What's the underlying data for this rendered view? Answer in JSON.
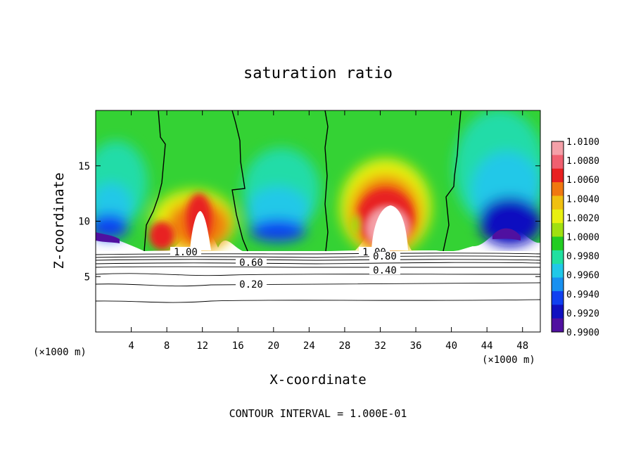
{
  "chart_data": {
    "type": "heatmap",
    "title": "saturation ratio",
    "xlabel": "X-coordinate",
    "ylabel": "Z-coordinate",
    "x_unit_left": "(×1000 m)",
    "x_unit_right": "(×1000 m)",
    "xlim": [
      0,
      50
    ],
    "ylim": [
      0,
      20
    ],
    "x_ticks": [
      4,
      8,
      12,
      16,
      20,
      24,
      28,
      32,
      36,
      40,
      44,
      48
    ],
    "y_ticks": [
      5,
      10,
      15
    ],
    "footer": "CONTOUR INTERVAL = 1.000E-01",
    "colorbar": {
      "levels": [
        "1.0100",
        "1.0080",
        "1.0060",
        "1.0040",
        "1.0020",
        "1.0000",
        "0.9980",
        "0.9960",
        "0.9940",
        "0.9920",
        "0.9900"
      ],
      "colors": [
        "#f4a0a8",
        "#f06070",
        "#e82020",
        "#f07810",
        "#f0c010",
        "#e8f010",
        "#a0e010",
        "#22cc22",
        "#20e0a0",
        "#20c8e8",
        "#1890f0",
        "#1040f0",
        "#1010c0",
        "#5010a0"
      ]
    },
    "contour_labels": [
      {
        "text": "1.00",
        "x": 8.5,
        "y": 7.3
      },
      {
        "text": "0.60",
        "x": 14.6,
        "y": 6.4
      },
      {
        "text": "0.20",
        "x": 14.6,
        "y": 4.0
      },
      {
        "text": "1.00",
        "x": 29.6,
        "y": 7.3
      },
      {
        "text": "0.80",
        "x": 29.6,
        "y": 7.1
      },
      {
        "text": "0.40",
        "x": 29.6,
        "y": 5.6
      }
    ]
  }
}
